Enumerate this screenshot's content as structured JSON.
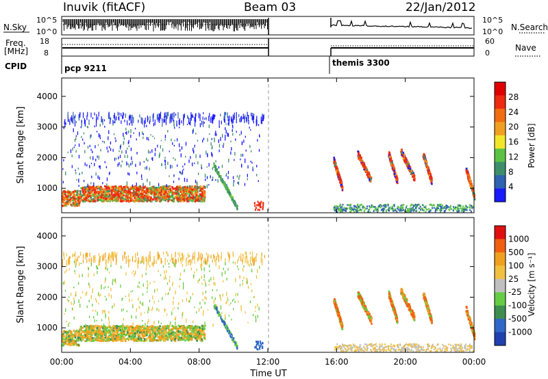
{
  "header": {
    "title": "Inuvik (fitACF)",
    "beam": "Beam 03",
    "date": "22/Jan/2012"
  },
  "side_labels": {
    "nsky": "N.Sky",
    "freq_line1": "Freq.",
    "freq_line2": "[MHz]",
    "cpid": "CPID",
    "nsearch": "N.Search",
    "nave": "Nave"
  },
  "small_panels": {
    "nsky_ticks": [
      "10^5",
      "10^0"
    ],
    "nsearch_ticks": [
      "10^5",
      "10^0"
    ],
    "freq_ticks": [
      "18",
      "8"
    ],
    "nave_ticks": [
      "60",
      "0"
    ],
    "cpid_segments": [
      {
        "label": "pcp 9211",
        "start_hour": 0,
        "end_hour": 12
      },
      {
        "label": "themis 3300",
        "start_hour": 15.8,
        "end_hour": 24
      }
    ]
  },
  "chart_data": [
    {
      "type": "heatmap",
      "panel": "power",
      "ylabel": "Slant Range [km]",
      "ylim": [
        200,
        4600
      ],
      "yticks": [
        "1000",
        "2000",
        "3000",
        "4000"
      ],
      "xlim": [
        0,
        24
      ],
      "xticks": [
        "00:00",
        "04:00",
        "08:00",
        "12:00",
        "16:00",
        "20:00",
        "00:00"
      ],
      "colorbar": {
        "label": "Power [dB]",
        "ticks": [
          "4",
          "8",
          "12",
          "16",
          "20",
          "24",
          "28"
        ],
        "colors": [
          "#1a1aff",
          "#2f62b0",
          "#3e8e6a",
          "#5cc245",
          "#f2e629",
          "#f0a020",
          "#f26c12",
          "#ee2a10",
          "#e00000"
        ]
      }
    },
    {
      "type": "heatmap",
      "panel": "velocity",
      "ylabel": "Slant Range [km]",
      "ylim": [
        200,
        4600
      ],
      "yticks": [
        "1000",
        "2000",
        "3000",
        "4000"
      ],
      "xlim": [
        0,
        24
      ],
      "xticks": [
        "00:00",
        "04:00",
        "08:00",
        "12:00",
        "16:00",
        "20:00",
        "00:00"
      ],
      "xlabel": "Time UT",
      "colorbar": {
        "label": "Velocity [m s⁻¹]",
        "ticks": [
          "1000",
          "500",
          "100",
          "25",
          "-25",
          "-100",
          "-500",
          "-1000"
        ],
        "colors": [
          "#2040b0",
          "#3068c8",
          "#3e8e50",
          "#66cc44",
          "#c0c0c0",
          "#f2c040",
          "#f0a020",
          "#f06010",
          "#e01010"
        ]
      }
    }
  ]
}
